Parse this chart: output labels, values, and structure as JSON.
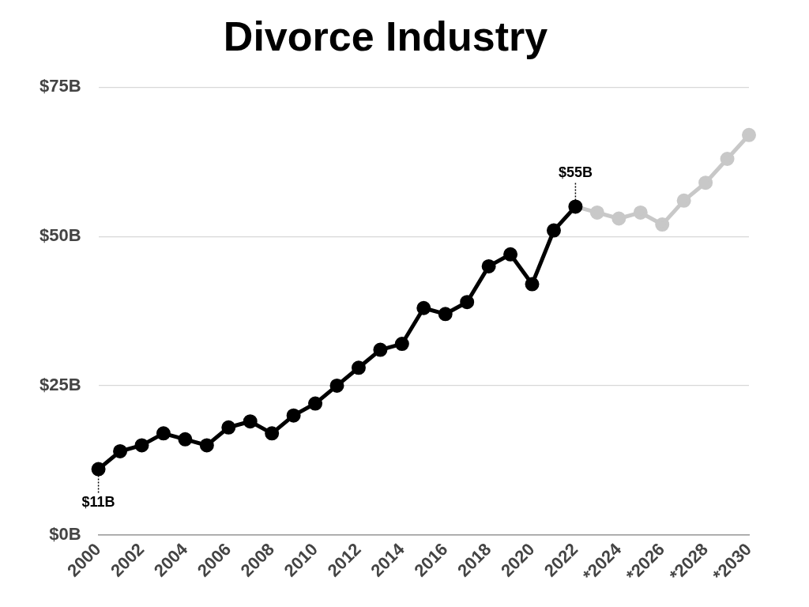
{
  "chart_data": {
    "type": "line",
    "title": "Divorce Industry",
    "categories": [
      "2000",
      null,
      "2002",
      null,
      "2004",
      null,
      "2006",
      null,
      "2008",
      null,
      "2010",
      null,
      "2012",
      null,
      "2014",
      null,
      "2016",
      null,
      "2018",
      null,
      "2020",
      null,
      "2022",
      null,
      "*2024",
      null,
      "*2026",
      null,
      "*2028",
      null,
      "*2030"
    ],
    "series": [
      {
        "color": "#000000",
        "values": [
          11,
          14,
          15,
          17,
          16,
          15,
          18,
          19,
          17,
          20,
          22,
          25,
          28,
          31,
          32,
          38,
          37,
          39,
          45,
          47,
          42,
          51,
          55,
          null,
          null,
          null,
          null,
          null,
          null,
          null,
          null
        ]
      },
      {
        "color": "#c8c8c8",
        "values": [
          null,
          null,
          null,
          null,
          null,
          null,
          null,
          null,
          null,
          null,
          null,
          null,
          null,
          null,
          null,
          null,
          null,
          null,
          null,
          null,
          null,
          null,
          55,
          54,
          53,
          54,
          52,
          56,
          59,
          63,
          67
        ]
      }
    ],
    "ylim": [
      0,
      75
    ],
    "yticks": [
      {
        "value": 0,
        "label": "$0B"
      },
      {
        "value": 25,
        "label": "$25B"
      },
      {
        "value": 50,
        "label": "$50B"
      },
      {
        "value": 75,
        "label": "$75B"
      }
    ],
    "grid": "y",
    "legend": false,
    "marker": "circle",
    "line_style": "solid",
    "annotations": [
      {
        "text": "$11B",
        "x": "2000",
        "y": 11
      },
      {
        "text": "$55B",
        "x": "2022",
        "y": 55
      }
    ]
  }
}
